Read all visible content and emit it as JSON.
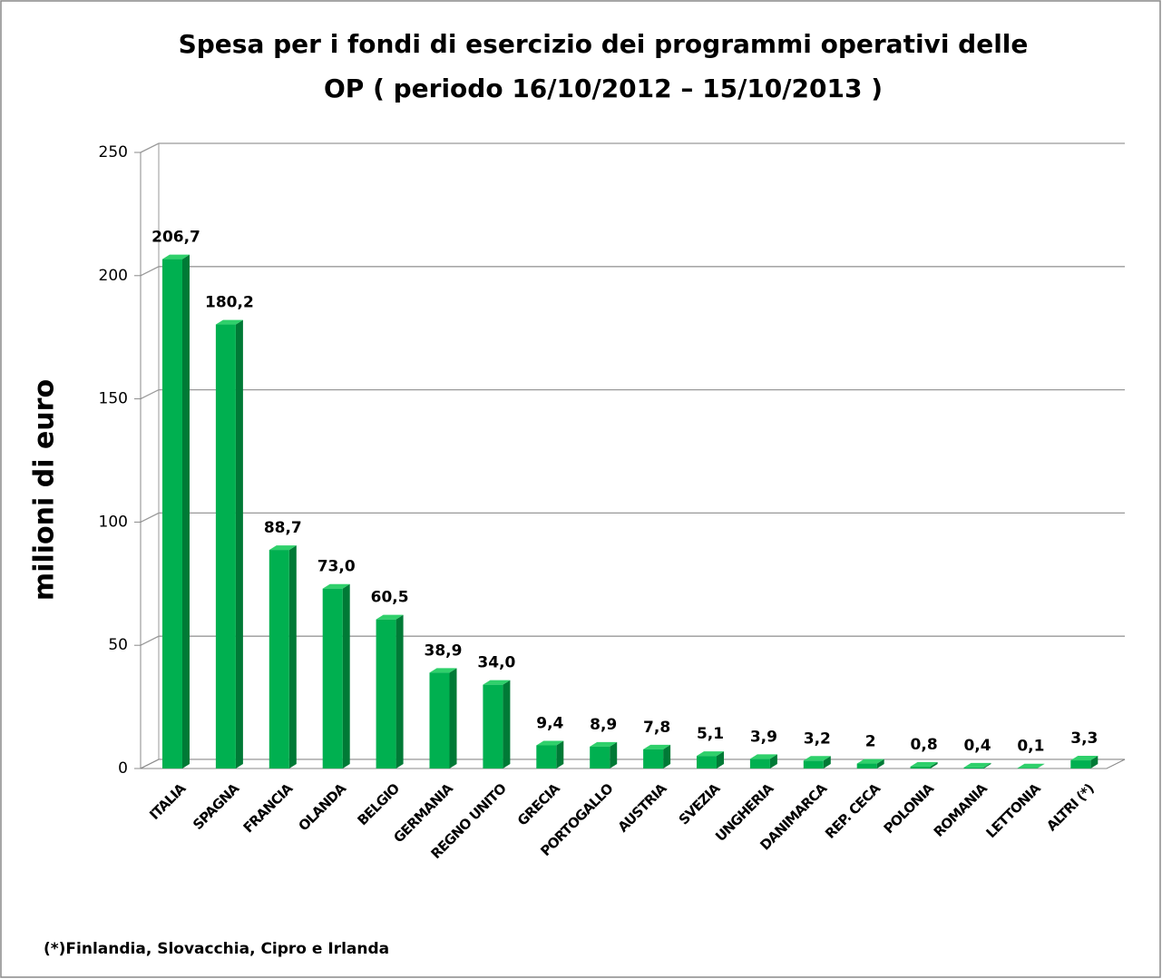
{
  "chart_data": {
    "type": "bar",
    "title": [
      "Spesa per i fondi di esercizio dei programmi operativi delle",
      "OP  ( periodo 16/10/2012 – 15/10/2013 )"
    ],
    "ylabel": "milioni di euro",
    "categories": [
      "ITALIA",
      "SPAGNA",
      "FRANCIA",
      "OLANDA",
      "BELGIO",
      "GERMANIA",
      "REGNO UNITO",
      "GRECIA",
      "PORTOGALLO",
      "AUSTRIA",
      "SVEZIA",
      "UNGHERIA",
      "DANIMARCA",
      "REP. CECA",
      "POLONIA",
      "ROMANIA",
      "LETTONIA",
      "ALTRI (*)"
    ],
    "values": [
      206.7,
      180.2,
      88.7,
      73.0,
      60.5,
      38.9,
      34.0,
      9.4,
      8.9,
      7.8,
      5.1,
      3.9,
      3.2,
      2,
      0.8,
      0.4,
      0.1,
      3.3
    ],
    "value_labels": [
      "206,7",
      "180,2",
      "88,7",
      "73,0",
      "60,5",
      "38,9",
      "34,0",
      "9,4",
      "8,9",
      "7,8",
      "5,1",
      "3,9",
      "3,2",
      "2",
      "0,8",
      "0,4",
      "0,1",
      "3,3"
    ],
    "color": "#00b050",
    "ylim": [
      0,
      250
    ],
    "yticks": [
      0,
      50,
      100,
      150,
      200,
      250
    ],
    "grid": true,
    "annotations": [
      "(*)Finlandia, Slovacchia, Cipro e Irlanda"
    ]
  }
}
